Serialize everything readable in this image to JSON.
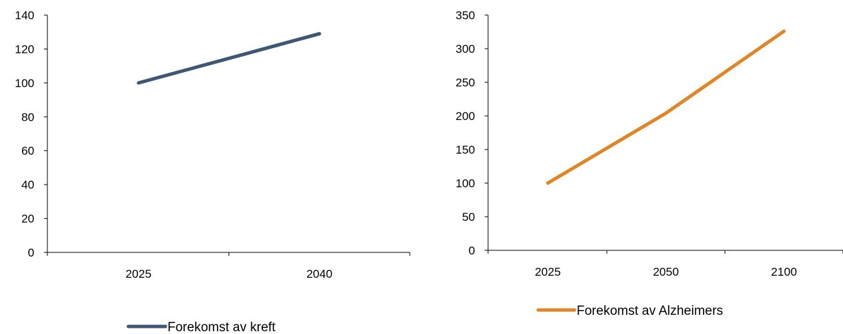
{
  "chart_data": [
    {
      "type": "line",
      "categories": [
        "2025",
        "2040"
      ],
      "series": [
        {
          "name": "Forekomst av kreft",
          "values": [
            100,
            129
          ],
          "color": "#3e5775"
        }
      ],
      "ylim": [
        0,
        140
      ],
      "yticks": [
        0,
        20,
        40,
        60,
        80,
        100,
        120,
        140
      ],
      "grid": false,
      "legend": "bottom"
    },
    {
      "type": "line",
      "categories": [
        "2025",
        "2050",
        "2100"
      ],
      "series": [
        {
          "name": "Forekomst av Alzheimers",
          "values": [
            100,
            204,
            326
          ],
          "color": "#df8626"
        }
      ],
      "ylim": [
        0,
        350
      ],
      "yticks": [
        0,
        50,
        100,
        150,
        200,
        250,
        300,
        350
      ],
      "grid": false,
      "legend": "bottom"
    }
  ]
}
